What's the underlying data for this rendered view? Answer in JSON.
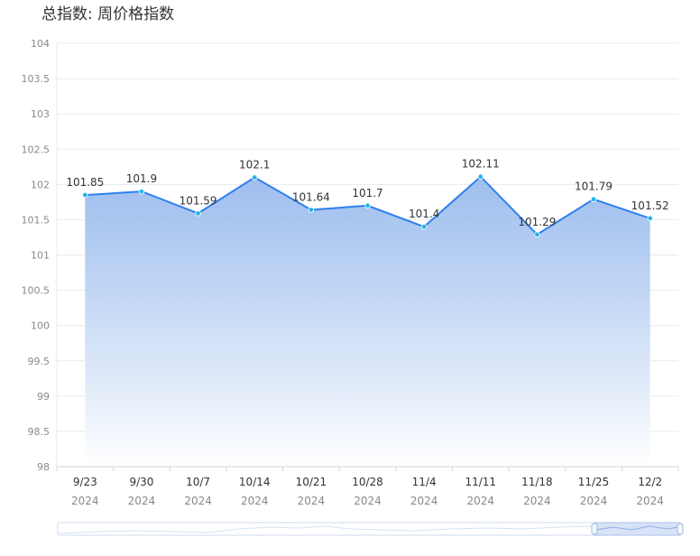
{
  "title": "总指数: 周价格指数",
  "chart_data": {
    "type": "area",
    "title": "总指数: 周价格指数",
    "categories": [
      "9/23",
      "9/30",
      "10/7",
      "10/14",
      "10/21",
      "10/28",
      "11/4",
      "11/11",
      "11/18",
      "11/25",
      "12/2"
    ],
    "category_years": [
      "2024",
      "2024",
      "2024",
      "2024",
      "2024",
      "2024",
      "2024",
      "2024",
      "2024",
      "2024",
      "2024"
    ],
    "series": [
      {
        "values": [
          101.85,
          101.9,
          101.59,
          102.1,
          101.64,
          101.7,
          101.4,
          102.11,
          101.29,
          101.79,
          101.52
        ]
      }
    ],
    "data_labels": [
      "101.85",
      "101.9",
      "101.59",
      "102.1",
      "101.64",
      "101.7",
      "101.4",
      "102.11",
      "101.29",
      "101.79",
      "101.52"
    ],
    "y_ticks": [
      "98",
      "98.5",
      "99",
      "99.5",
      "100",
      "100.5",
      "101",
      "101.5",
      "102",
      "102.5",
      "103",
      "103.5",
      "104"
    ],
    "ylim": [
      98,
      104
    ],
    "grid": true,
    "line_color": "#2f7ff0",
    "area_color_top": "#93b7ec",
    "area_color_bottom": "#ffffff",
    "zoom_slider": true
  }
}
